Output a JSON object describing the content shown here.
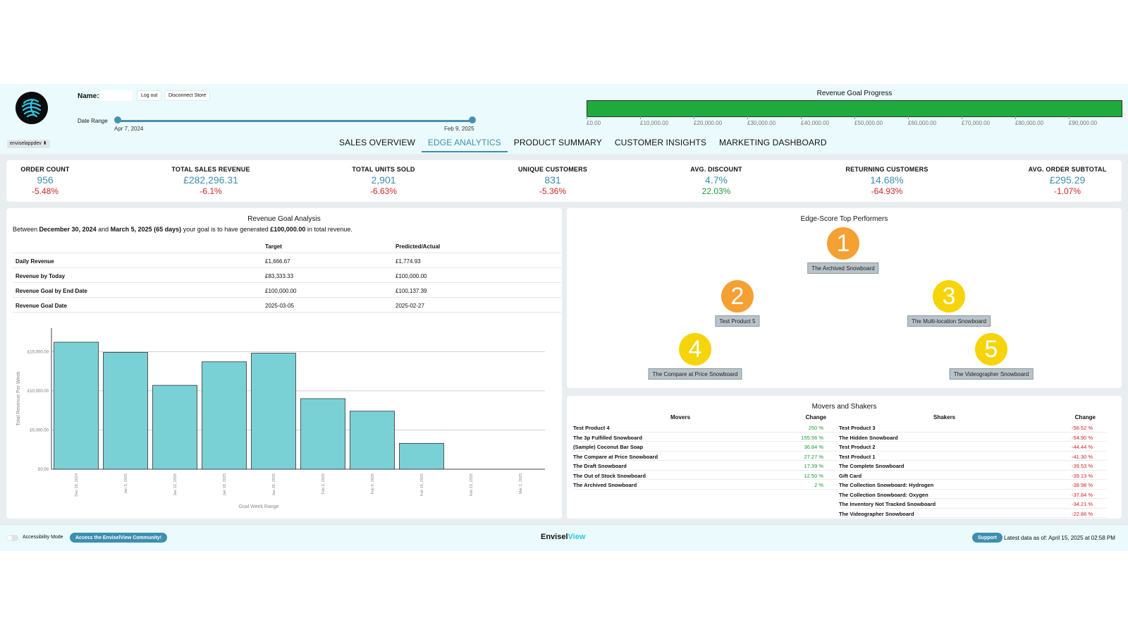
{
  "header": {
    "name_label": "Name:",
    "name_value": "",
    "logout_label": "Log out",
    "disconnect_label": "Disconnect Store",
    "date_range_label": "Date Range",
    "date_start": "Apr 7, 2024",
    "date_end": "Feb 9, 2025",
    "store_select": "enviselappdev ⬍",
    "revenue_goal": {
      "title": "Revenue Goal Progress",
      "fill_fraction": 1.0,
      "ticks": [
        "£0.00",
        "£10,000.00",
        "£20,000.00",
        "£30,000.00",
        "£40,000.00",
        "£50,000.00",
        "£60,000.00",
        "£70,000.00",
        "£80,000.00",
        "£90,000.00"
      ]
    },
    "tabs": [
      "SALES OVERVIEW",
      "EDGE ANALYTICS",
      "PRODUCT SUMMARY",
      "CUSTOMER INSIGHTS",
      "MARKETING DASHBOARD"
    ],
    "active_tab": "EDGE ANALYTICS"
  },
  "kpis": [
    {
      "label": "ORDER COUNT",
      "value": "956",
      "change": "-5.48%",
      "trend": "neg"
    },
    {
      "label": "TOTAL SALES REVENUE",
      "value": "£282,296.31",
      "change": "-6.1%",
      "trend": "neg"
    },
    {
      "label": "TOTAL UNITS SOLD",
      "value": "2,901",
      "change": "-6.63%",
      "trend": "neg"
    },
    {
      "label": "UNIQUE CUSTOMERS",
      "value": "831",
      "change": "-5.36%",
      "trend": "neg"
    },
    {
      "label": "AVG. DISCOUNT",
      "value": "4.7%",
      "change": "22.03%",
      "trend": "pos"
    },
    {
      "label": "RETURNING CUSTOMERS",
      "value": "14.68%",
      "change": "-64.93%",
      "trend": "neg"
    },
    {
      "label": "AVG. ORDER SUBTOTAL",
      "value": "£295.29",
      "change": "-1.07%",
      "trend": "neg"
    }
  ],
  "goal": {
    "title": "Revenue Goal Analysis",
    "sentence": {
      "p1": "Between ",
      "start": "December 30, 2024",
      "p2": " and ",
      "end": "March 5, 2025 (65 days)",
      "p3": " your goal is to have generated ",
      "amount": "£100,000.00",
      "p4": " in total revenue."
    },
    "headers": [
      "",
      "Target",
      "Predicted/Actual"
    ],
    "rows": [
      [
        "Daily Revenue",
        "£1,666.67",
        "£1,774.93"
      ],
      [
        "Revenue by Today",
        "£83,333.33",
        "£100,000.00"
      ],
      [
        "Revenue Goal by End Date",
        "£100,000.00",
        "£100,137.39"
      ],
      [
        "Revenue Goal Date",
        "2025-03-05",
        "2025-02-27"
      ]
    ]
  },
  "chart_data": {
    "type": "bar",
    "title": "",
    "xlabel": "Goal Week Range",
    "ylabel": "Total Revenue Per Week",
    "categories": [
      "Dec 29, 2024",
      "Jan 5, 2025",
      "Jan 12, 2025",
      "Jan 19, 2025",
      "Jan 26, 2025",
      "Feb 2, 2025",
      "Feb 9, 2025",
      "Feb 16, 2025",
      "Feb 23, 2025",
      "Mar 2, 2025"
    ],
    "values": [
      16200,
      14900,
      10700,
      13700,
      14800,
      9000,
      7400,
      3300,
      0,
      0
    ],
    "yticks": [
      0,
      5000,
      10000,
      15000
    ],
    "ytick_labels": [
      "£0.00",
      "£5,000.00",
      "£10,000.00",
      "£15,000.00"
    ],
    "ylim": [
      0,
      18000
    ],
    "grid": true,
    "bar_color": "#79d1d6"
  },
  "performers": {
    "title": "Edge-Score Top Performers",
    "items": [
      {
        "rank": "1",
        "name": "The Archived Snowboard",
        "color": "orange"
      },
      {
        "rank": "2",
        "name": "Test Product 5",
        "color": "orange"
      },
      {
        "rank": "3",
        "name": "The Multi-location Snowboard",
        "color": "yellow"
      },
      {
        "rank": "4",
        "name": "The Compare at Price Snowboard",
        "color": "yellow"
      },
      {
        "rank": "5",
        "name": "The Videographer Snowboard",
        "color": "yellow"
      }
    ]
  },
  "movers_shakers": {
    "title": "Movers and Shakers",
    "movers_header": "Movers",
    "shakers_header": "Shakers",
    "change_header": "Change",
    "movers": [
      {
        "name": "Test Product 4",
        "change": "250 %"
      },
      {
        "name": "The 3p Fulfilled Snowboard",
        "change": "155.56 %"
      },
      {
        "name": "(Sample) Coconut Bar Soap",
        "change": "36.84 %"
      },
      {
        "name": "The Compare at Price Snowboard",
        "change": "27.27 %"
      },
      {
        "name": "The Draft Snowboard",
        "change": "17.39 %"
      },
      {
        "name": "The Out of Stock Snowboard",
        "change": "12.50 %"
      },
      {
        "name": "The Archived Snowboard",
        "change": "2 %"
      }
    ],
    "shakers": [
      {
        "name": "Test Product 3",
        "change": "-56.52 %"
      },
      {
        "name": "The Hidden Snowboard",
        "change": "-54.90 %"
      },
      {
        "name": "Test Product 2",
        "change": "-44.44 %"
      },
      {
        "name": "Test Product 1",
        "change": "-41.30 %"
      },
      {
        "name": "The Complete Snowboard",
        "change": "-39.53 %"
      },
      {
        "name": "Gift Card",
        "change": "-39.13 %"
      },
      {
        "name": "The Collection Snowboard: Hydrogen",
        "change": "-38.98 %"
      },
      {
        "name": "The Collection Snowboard: Oxygen",
        "change": "-37.84 %"
      },
      {
        "name": "The Inventory Not Tracked Snowboard",
        "change": "-34.21 %"
      },
      {
        "name": "The Videographer Snowboard",
        "change": "-22.86 %"
      }
    ]
  },
  "footer": {
    "accessibility_label": "Accessibility Mode",
    "community_label": "Access the EnviselView Community!",
    "brand_part1": "Envisel",
    "brand_part2": "View",
    "support_label": "Support",
    "latest_data": "Latest data as of: April 15, 2025 at 02:58 PM"
  }
}
